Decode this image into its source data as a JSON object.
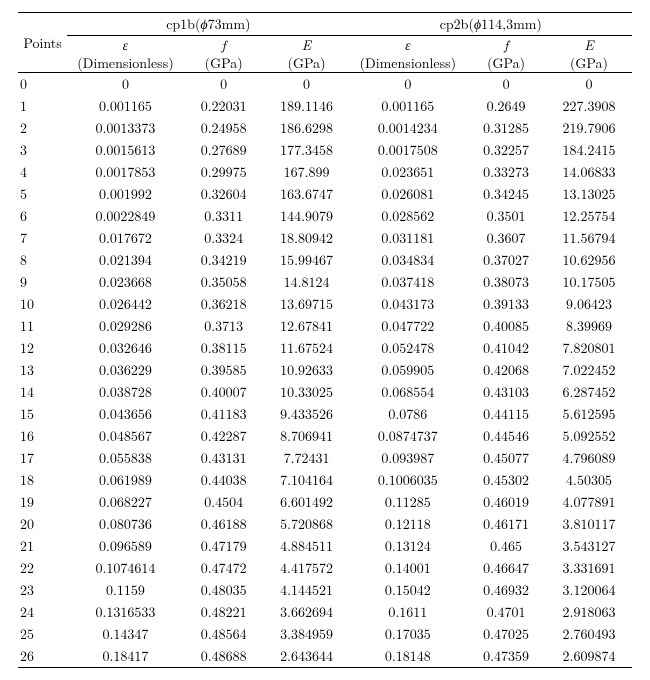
{
  "groups": [
    {
      "key": "g1",
      "label_prefix": "cp1b(",
      "phi": "ϕ",
      "diam": "73mm)",
      "eps_label": "ε",
      "f_label": "f",
      "E_label": "E",
      "dim": "(Dimensionless)",
      "gpa": "(GPa)"
    },
    {
      "key": "g2",
      "label_prefix": "cp2b(",
      "phi": "ϕ",
      "diam": "114,3mm)",
      "eps_label": "ε",
      "f_label": "f",
      "E_label": "E",
      "dim": "(Dimensionless)",
      "gpa": "(GPa)"
    }
  ],
  "points_label": "Points",
  "rows": [
    {
      "p": "0",
      "g1": {
        "eps": "0",
        "f": "0",
        "E": "0"
      },
      "g2": {
        "eps": "0",
        "f": "0",
        "E": "0"
      }
    },
    {
      "p": "1",
      "g1": {
        "eps": "0.001165",
        "f": "0.22031",
        "E": "189.1146"
      },
      "g2": {
        "eps": "0.001165",
        "f": "0.2649",
        "E": "227.3908"
      }
    },
    {
      "p": "2",
      "g1": {
        "eps": "0.0013373",
        "f": "0.24958",
        "E": "186.6298"
      },
      "g2": {
        "eps": "0.0014234",
        "f": "0.31285",
        "E": "219.7906"
      }
    },
    {
      "p": "3",
      "g1": {
        "eps": "0.0015613",
        "f": "0.27689",
        "E": "177.3458"
      },
      "g2": {
        "eps": "0.0017508",
        "f": "0.32257",
        "E": "184.2415"
      }
    },
    {
      "p": "4",
      "g1": {
        "eps": "0.0017853",
        "f": "0.29975",
        "E": "167.899"
      },
      "g2": {
        "eps": "0.023651",
        "f": "0.33273",
        "E": "14.06833"
      }
    },
    {
      "p": "5",
      "g1": {
        "eps": "0.001992",
        "f": "0.32604",
        "E": "163.6747"
      },
      "g2": {
        "eps": "0.026081",
        "f": "0.34245",
        "E": "13.13025"
      }
    },
    {
      "p": "6",
      "g1": {
        "eps": "0.0022849",
        "f": "0.3311",
        "E": "144.9079"
      },
      "g2": {
        "eps": "0.028562",
        "f": "0.3501",
        "E": "12.25754"
      }
    },
    {
      "p": "7",
      "g1": {
        "eps": "0.017672",
        "f": "0.3324",
        "E": "18.80942"
      },
      "g2": {
        "eps": "0.031181",
        "f": "0.3607",
        "E": "11.56794"
      }
    },
    {
      "p": "8",
      "g1": {
        "eps": "0.021394",
        "f": "0.34219",
        "E": "15.99467"
      },
      "g2": {
        "eps": "0.034834",
        "f": "0.37027",
        "E": "10.62956"
      }
    },
    {
      "p": "9",
      "g1": {
        "eps": "0.023668",
        "f": "0.35058",
        "E": "14.8124"
      },
      "g2": {
        "eps": "0.037418",
        "f": "0.38073",
        "E": "10.17505"
      }
    },
    {
      "p": "10",
      "g1": {
        "eps": "0.026442",
        "f": "0.36218",
        "E": "13.69715"
      },
      "g2": {
        "eps": "0.043173",
        "f": "0.39133",
        "E": "9.06423"
      }
    },
    {
      "p": "11",
      "g1": {
        "eps": "0.029286",
        "f": "0.3713",
        "E": "12.67841"
      },
      "g2": {
        "eps": "0.047722",
        "f": "0.40085",
        "E": "8.39969"
      }
    },
    {
      "p": "12",
      "g1": {
        "eps": "0.032646",
        "f": "0.38115",
        "E": "11.67524"
      },
      "g2": {
        "eps": "0.052478",
        "f": "0.41042",
        "E": "7.820801"
      }
    },
    {
      "p": "13",
      "g1": {
        "eps": "0.036229",
        "f": "0.39585",
        "E": "10.92633"
      },
      "g2": {
        "eps": "0.059905",
        "f": "0.42068",
        "E": "7.022452"
      }
    },
    {
      "p": "14",
      "g1": {
        "eps": "0.038728",
        "f": "0.40007",
        "E": "10.33025"
      },
      "g2": {
        "eps": "0.068554",
        "f": "0.43103",
        "E": "6.287452"
      }
    },
    {
      "p": "15",
      "g1": {
        "eps": "0.043656",
        "f": "0.41183",
        "E": "9.433526"
      },
      "g2": {
        "eps": "0.0786",
        "f": "0.44115",
        "E": "5.612595"
      }
    },
    {
      "p": "16",
      "g1": {
        "eps": "0.048567",
        "f": "0.42287",
        "E": "8.706941"
      },
      "g2": {
        "eps": "0.0874737",
        "f": "0.44546",
        "E": "5.092552"
      }
    },
    {
      "p": "17",
      "g1": {
        "eps": "0.055838",
        "f": "0.43131",
        "E": "7.72431"
      },
      "g2": {
        "eps": "0.093987",
        "f": "0.45077",
        "E": "4.796089"
      }
    },
    {
      "p": "18",
      "g1": {
        "eps": "0.061989",
        "f": "0.44038",
        "E": "7.104164"
      },
      "g2": {
        "eps": "0.1006035",
        "f": "0.45302",
        "E": "4.50305"
      }
    },
    {
      "p": "19",
      "g1": {
        "eps": "0.068227",
        "f": "0.4504",
        "E": "6.601492"
      },
      "g2": {
        "eps": "0.11285",
        "f": "0.46019",
        "E": "4.077891"
      }
    },
    {
      "p": "20",
      "g1": {
        "eps": "0.080736",
        "f": "0.46188",
        "E": "5.720868"
      },
      "g2": {
        "eps": "0.12118",
        "f": "0.46171",
        "E": "3.810117"
      }
    },
    {
      "p": "21",
      "g1": {
        "eps": "0.096589",
        "f": "0.47179",
        "E": "4.884511"
      },
      "g2": {
        "eps": "0.13124",
        "f": "0.465",
        "E": "3.543127"
      }
    },
    {
      "p": "22",
      "g1": {
        "eps": "0.1074614",
        "f": "0.47472",
        "E": "4.417572"
      },
      "g2": {
        "eps": "0.14001",
        "f": "0.46647",
        "E": "3.331691"
      }
    },
    {
      "p": "23",
      "g1": {
        "eps": "0.1159",
        "f": "0.48035",
        "E": "4.144521"
      },
      "g2": {
        "eps": "0.15042",
        "f": "0.46932",
        "E": "3.120064"
      }
    },
    {
      "p": "24",
      "g1": {
        "eps": "0.1316533",
        "f": "0.48221",
        "E": "3.662694"
      },
      "g2": {
        "eps": "0.1611",
        "f": "0.4701",
        "E": "2.918063"
      }
    },
    {
      "p": "25",
      "g1": {
        "eps": "0.14347",
        "f": "0.48564",
        "E": "3.384959"
      },
      "g2": {
        "eps": "0.17035",
        "f": "0.47025",
        "E": "2.760493"
      }
    },
    {
      "p": "26",
      "g1": {
        "eps": "0.18417",
        "f": "0.48688",
        "E": "2.643644"
      },
      "g2": {
        "eps": "0.18148",
        "f": "0.47359",
        "E": "2.609874"
      }
    }
  ]
}
